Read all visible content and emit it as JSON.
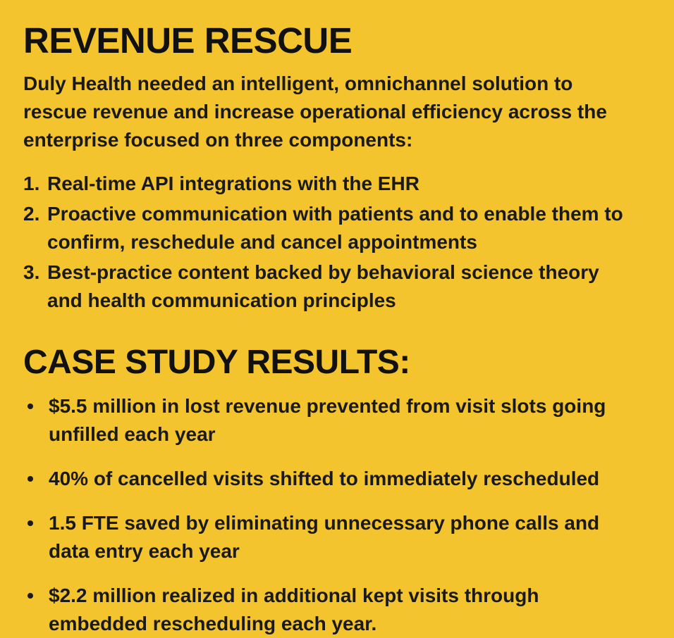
{
  "page": {
    "background_color": "#F3C42E",
    "text_color": "#1a1a1a",
    "heading_color": "#111111"
  },
  "revenue_rescue": {
    "title": "REVENUE RESCUE",
    "intro": "Duly Health needed an intelligent, omnichannel solution to rescue revenue and increase operational efficiency across the enterprise focused on three components:",
    "numbered_items": [
      {
        "number": "1.",
        "text": "Real-time API integrations with the EHR"
      },
      {
        "number": "2.",
        "text": "Proactive communication with patients and to enable them to confirm, reschedule and cancel appointments"
      },
      {
        "number": "3.",
        "text": "Best-practice content backed by behavioral science theory and health communication principles"
      }
    ]
  },
  "case_study": {
    "title": "CASE STUDY RESULTS:",
    "bullets": [
      "$5.5 million in lost revenue prevented from visit slots going unfilled each year",
      "40% of cancelled visits shifted to immediately rescheduled",
      "1.5 FTE saved by eliminating unnecessary phone calls and data entry each year",
      "$2.2 million realized in additional kept visits through embedded rescheduling each year."
    ]
  }
}
